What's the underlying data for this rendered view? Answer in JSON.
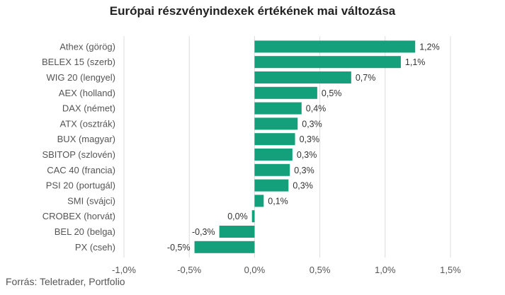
{
  "chart_data": {
    "type": "bar",
    "orientation": "horizontal",
    "title": "Európai részvényindexek értékének mai változása",
    "source": "Forrás: Teletrader, Portfolio",
    "bar_color": "#13a07a",
    "grid": true,
    "xlim": [
      -1.0,
      1.5
    ],
    "xticks": [
      -1.0,
      -0.5,
      0.0,
      0.5,
      1.0,
      1.5
    ],
    "xtick_labels": [
      "-1,0%",
      "-0,5%",
      "0,0%",
      "0,5%",
      "1,0%",
      "1,5%"
    ],
    "categories": [
      "Athex (görög)",
      "BELEX 15 (szerb)",
      "WIG 20 (lengyel)",
      "AEX (holland)",
      "DAX (német)",
      "ATX (osztrák)",
      "BUX (magyar)",
      "SBITOP (szlovén)",
      "CAC 40 (francia)",
      "PSI 20 (portugál)",
      "SMI (svájci)",
      "CROBEX (horvát)",
      "BEL 20 (belga)",
      "PX (cseh)"
    ],
    "values": [
      1.23,
      1.12,
      0.74,
      0.48,
      0.36,
      0.33,
      0.31,
      0.29,
      0.27,
      0.26,
      0.07,
      -0.02,
      -0.27,
      -0.46
    ],
    "value_labels": [
      "1,2%",
      "1,1%",
      "0,7%",
      "0,5%",
      "0,4%",
      "0,3%",
      "0,3%",
      "0,3%",
      "0,3%",
      "0,3%",
      "0,1%",
      "0,0%",
      "-0,3%",
      "-0,5%"
    ]
  }
}
